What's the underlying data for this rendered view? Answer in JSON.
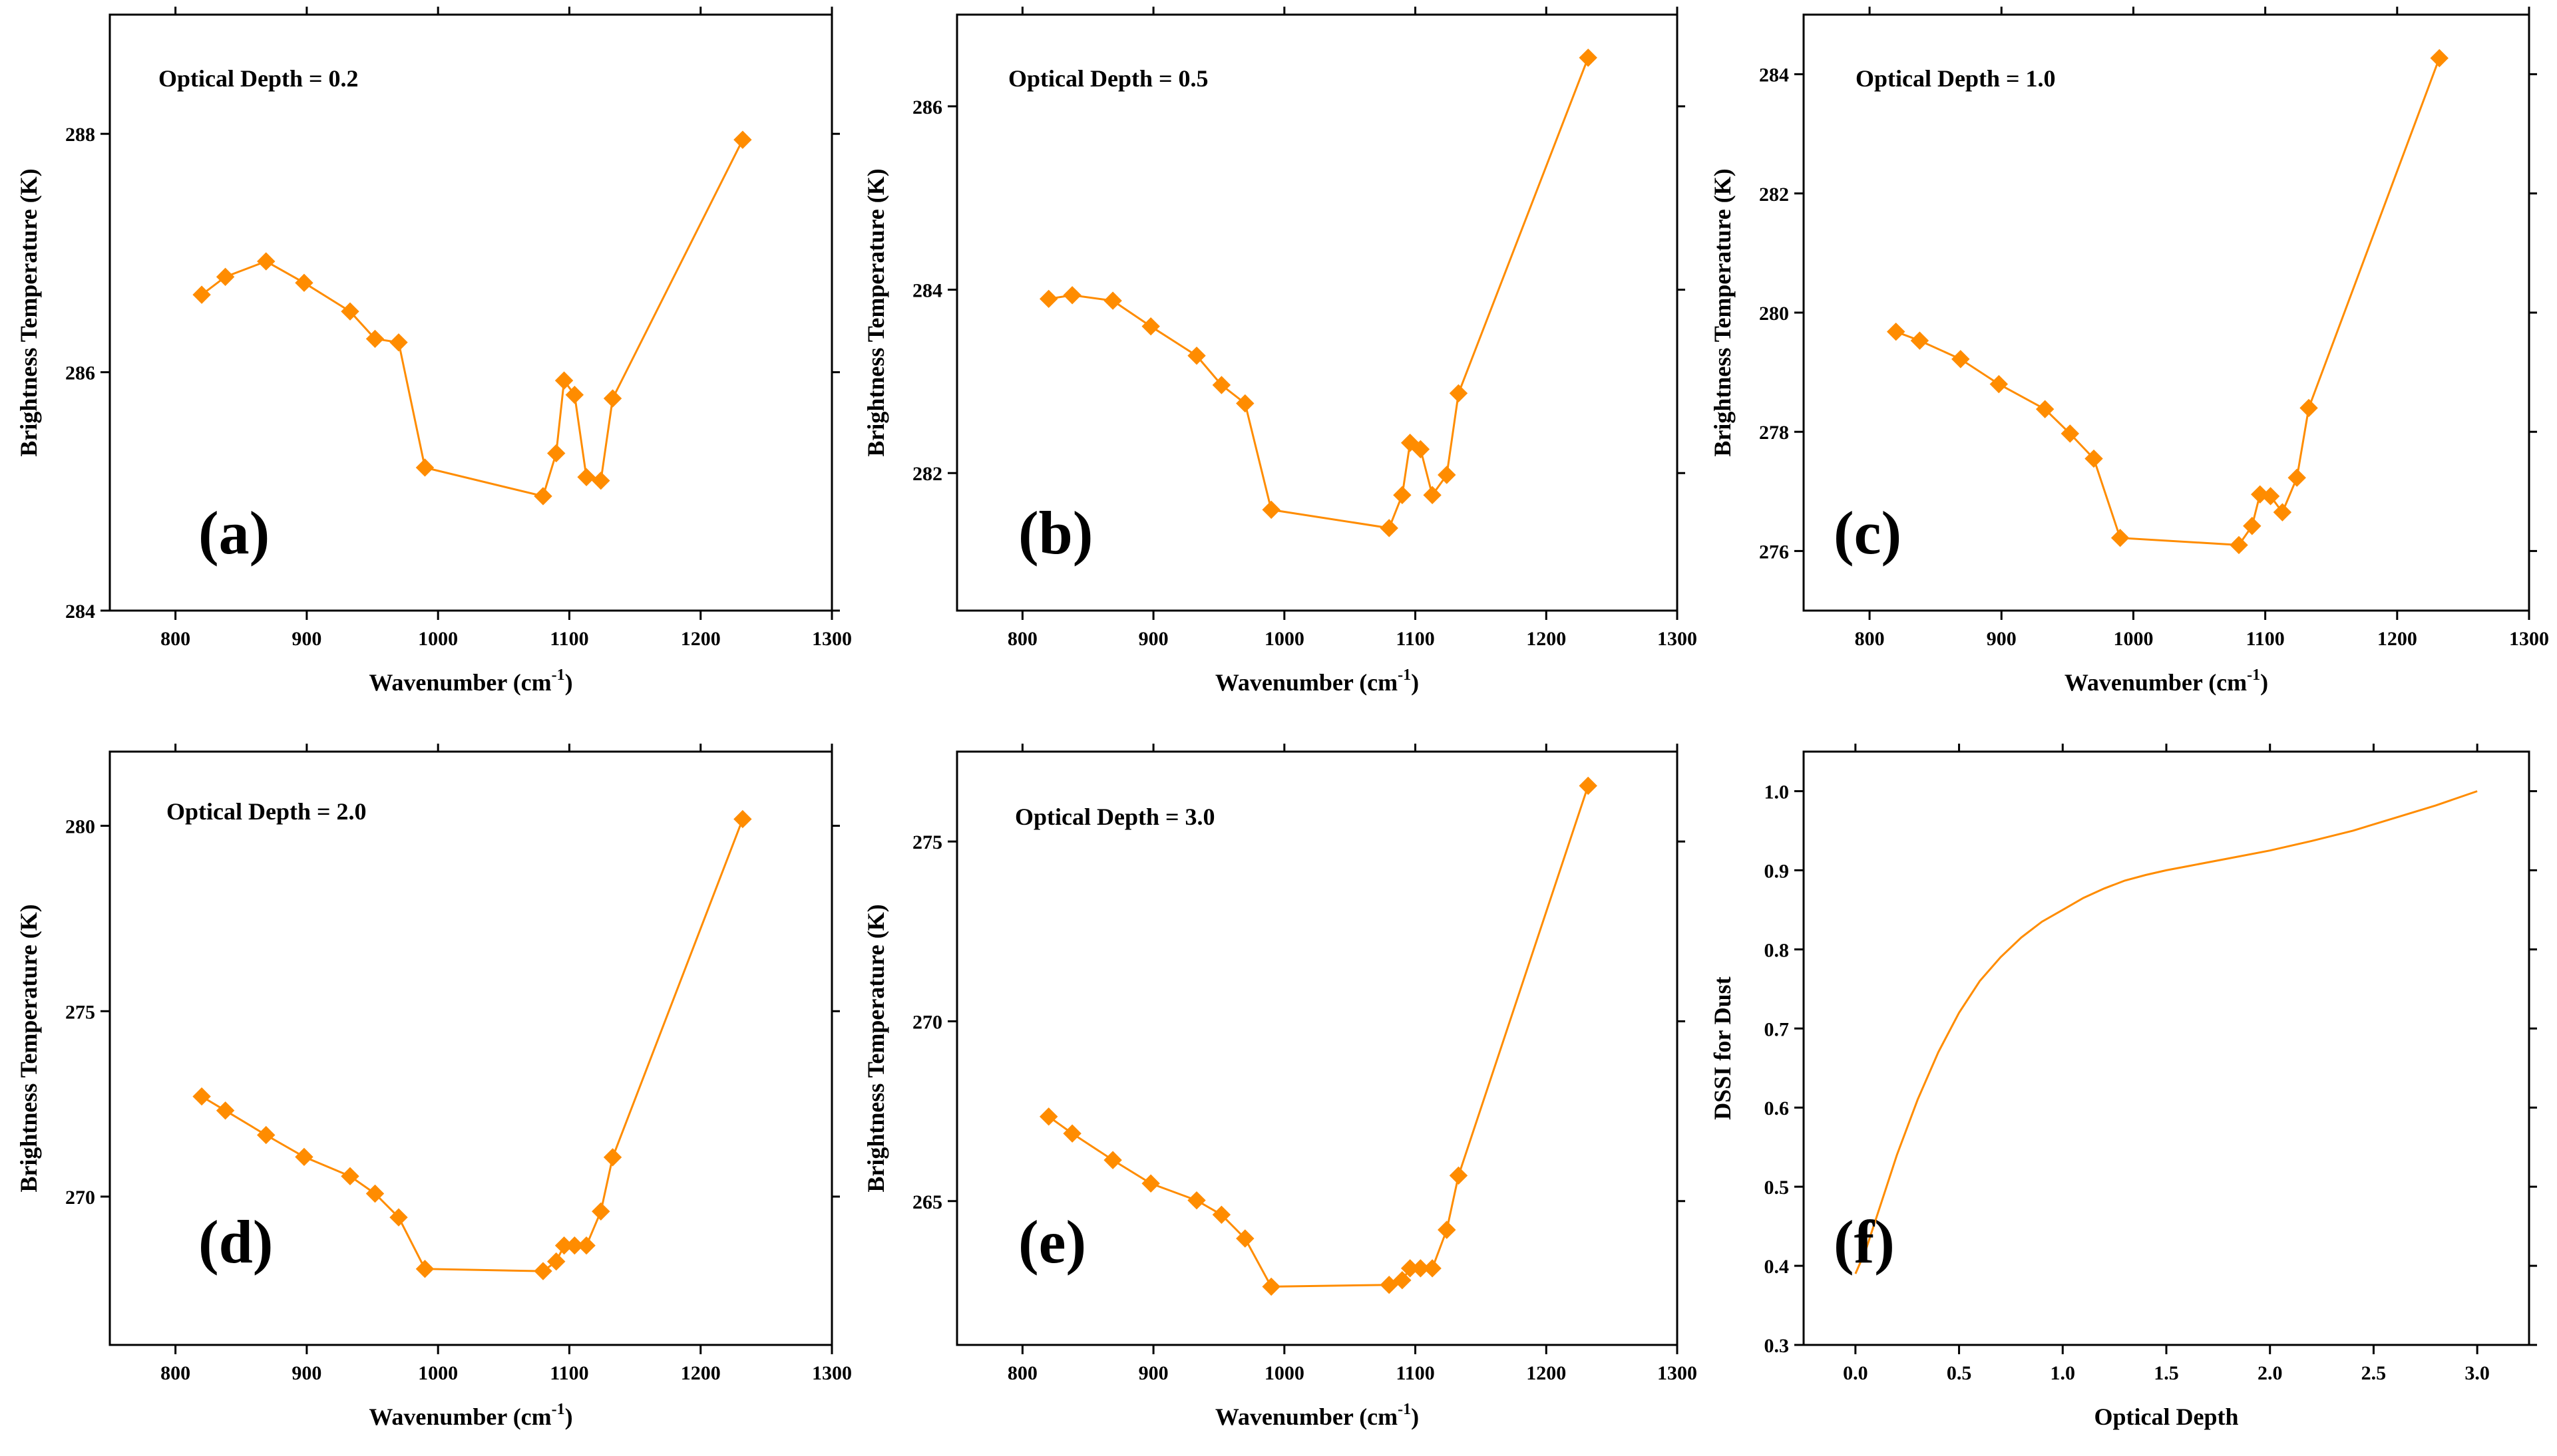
{
  "colors": {
    "series": "#ff8c00",
    "axes": "#000000",
    "background": "#ffffff"
  },
  "chart_data": [
    {
      "type": "line",
      "panel": "(a)",
      "annotation": "Optical Depth = 0.2",
      "xlabel": "Wavenumber (cm",
      "xlabel_sup": "-1",
      "xlabel_close": ")",
      "ylabel": "Brightness Temperature (K)",
      "xlim": [
        750,
        1300
      ],
      "ylim": [
        284,
        289
      ],
      "xticks": [
        800,
        900,
        1000,
        1100,
        1200,
        1300
      ],
      "yticks": [
        284,
        286,
        288
      ],
      "marker": "diamond",
      "x": [
        820,
        838,
        869,
        898,
        933,
        952,
        970,
        990,
        1080,
        1090,
        1096,
        1104,
        1113,
        1124,
        1133,
        1232
      ],
      "y": [
        286.65,
        286.8,
        286.93,
        286.75,
        286.51,
        286.28,
        286.25,
        285.2,
        284.96,
        285.32,
        285.93,
        285.81,
        285.12,
        285.09,
        285.78,
        287.95
      ]
    },
    {
      "type": "line",
      "panel": "(b)",
      "annotation": "Optical Depth = 0.5",
      "xlabel": "Wavenumber (cm",
      "xlabel_sup": "-1",
      "xlabel_close": ")",
      "ylabel": "Brightness Temperature (K)",
      "xlim": [
        750,
        1300
      ],
      "ylim": [
        280.5,
        287.0
      ],
      "xticks": [
        800,
        900,
        1000,
        1100,
        1200,
        1300
      ],
      "yticks": [
        282,
        284,
        286
      ],
      "marker": "diamond",
      "x": [
        820,
        838,
        869,
        898,
        933,
        952,
        970,
        990,
        1080,
        1090,
        1096,
        1104,
        1113,
        1124,
        1133,
        1232
      ],
      "y": [
        283.9,
        283.94,
        283.88,
        283.6,
        283.28,
        282.96,
        282.76,
        281.6,
        281.4,
        281.76,
        282.33,
        282.26,
        281.76,
        281.98,
        282.87,
        286.53
      ]
    },
    {
      "type": "line",
      "panel": "(c)",
      "annotation": "Optical Depth = 1.0",
      "xlabel": "Wavenumber (cm",
      "xlabel_sup": "-1",
      "xlabel_close": ")",
      "ylabel": "Brightness Temperature (K)",
      "xlim": [
        750,
        1300
      ],
      "ylim": [
        275.0,
        285.0
      ],
      "xticks": [
        800,
        900,
        1000,
        1100,
        1200,
        1300
      ],
      "yticks": [
        276,
        278,
        280,
        282,
        284
      ],
      "marker": "diamond",
      "x": [
        820,
        838,
        869,
        898,
        933,
        952,
        970,
        990,
        1080,
        1090,
        1096,
        1104,
        1113,
        1124,
        1133,
        1232
      ],
      "y": [
        279.68,
        279.53,
        279.22,
        278.8,
        278.38,
        277.97,
        277.55,
        276.22,
        276.1,
        276.42,
        276.95,
        276.92,
        276.65,
        277.23,
        278.4,
        284.27
      ]
    },
    {
      "type": "line",
      "panel": "(d)",
      "annotation": "Optical Depth = 2.0",
      "xlabel": "Wavenumber (cm",
      "xlabel_sup": "-1",
      "xlabel_close": ")",
      "ylabel": "Brightness Temperature (K)",
      "xlim": [
        750,
        1300
      ],
      "ylim": [
        266.0,
        282.0
      ],
      "xticks": [
        800,
        900,
        1000,
        1100,
        1200,
        1300
      ],
      "yticks": [
        270,
        275,
        280
      ],
      "marker": "diamond",
      "x": [
        820,
        838,
        869,
        898,
        933,
        952,
        970,
        990,
        1080,
        1090,
        1096,
        1104,
        1113,
        1124,
        1133,
        1232
      ],
      "y": [
        272.7,
        272.32,
        271.66,
        271.07,
        270.55,
        270.08,
        269.44,
        268.05,
        267.99,
        268.25,
        268.68,
        268.68,
        268.68,
        269.6,
        271.06,
        280.18
      ]
    },
    {
      "type": "line",
      "panel": "(e)",
      "annotation": "Optical Depth = 3.0",
      "xlabel": "Wavenumber (cm",
      "xlabel_sup": "-1",
      "xlabel_close": ")",
      "ylabel": "Brightness Temperature (K)",
      "xlim": [
        750,
        1300
      ],
      "ylim": [
        261.0,
        277.5
      ],
      "xticks": [
        800,
        900,
        1000,
        1100,
        1200,
        1300
      ],
      "yticks": [
        265,
        270,
        275
      ],
      "marker": "diamond",
      "x": [
        820,
        838,
        869,
        898,
        933,
        952,
        970,
        990,
        1080,
        1090,
        1096,
        1104,
        1113,
        1124,
        1133,
        1232
      ],
      "y": [
        267.35,
        266.88,
        266.14,
        265.49,
        265.02,
        264.62,
        263.96,
        262.62,
        262.67,
        262.8,
        263.13,
        263.13,
        263.13,
        264.2,
        265.71,
        276.55
      ]
    },
    {
      "type": "line",
      "panel": "(f)",
      "annotation": "",
      "xlabel": "Optical Depth",
      "ylabel": "DSSI for Dust",
      "xlim": [
        -0.25,
        3.25
      ],
      "ylim": [
        0.3,
        1.05
      ],
      "xticks": [
        0.0,
        0.5,
        1.0,
        1.5,
        2.0,
        2.5,
        3.0
      ],
      "xticklabels": [
        "0.0",
        "0.5",
        "1.0",
        "1.5",
        "2.0",
        "2.5",
        "3.0"
      ],
      "yticks": [
        0.3,
        0.4,
        0.5,
        0.6,
        0.7,
        0.8,
        0.9,
        1.0
      ],
      "yticklabels": [
        "0.3",
        "0.4",
        "0.5",
        "0.6",
        "0.7",
        "0.8",
        "0.9",
        "1.0"
      ],
      "marker": "none",
      "x": [
        0.0,
        0.05,
        0.1,
        0.15,
        0.2,
        0.3,
        0.4,
        0.5,
        0.6,
        0.7,
        0.8,
        0.9,
        1.0,
        1.1,
        1.2,
        1.3,
        1.4,
        1.5,
        1.6,
        1.8,
        2.0,
        2.2,
        2.4,
        2.6,
        2.8,
        3.0
      ],
      "y": [
        0.39,
        0.42,
        0.46,
        0.5,
        0.54,
        0.61,
        0.67,
        0.72,
        0.76,
        0.79,
        0.815,
        0.835,
        0.85,
        0.865,
        0.877,
        0.887,
        0.894,
        0.9,
        0.905,
        0.915,
        0.925,
        0.937,
        0.95,
        0.966,
        0.982,
        1.0
      ]
    }
  ]
}
